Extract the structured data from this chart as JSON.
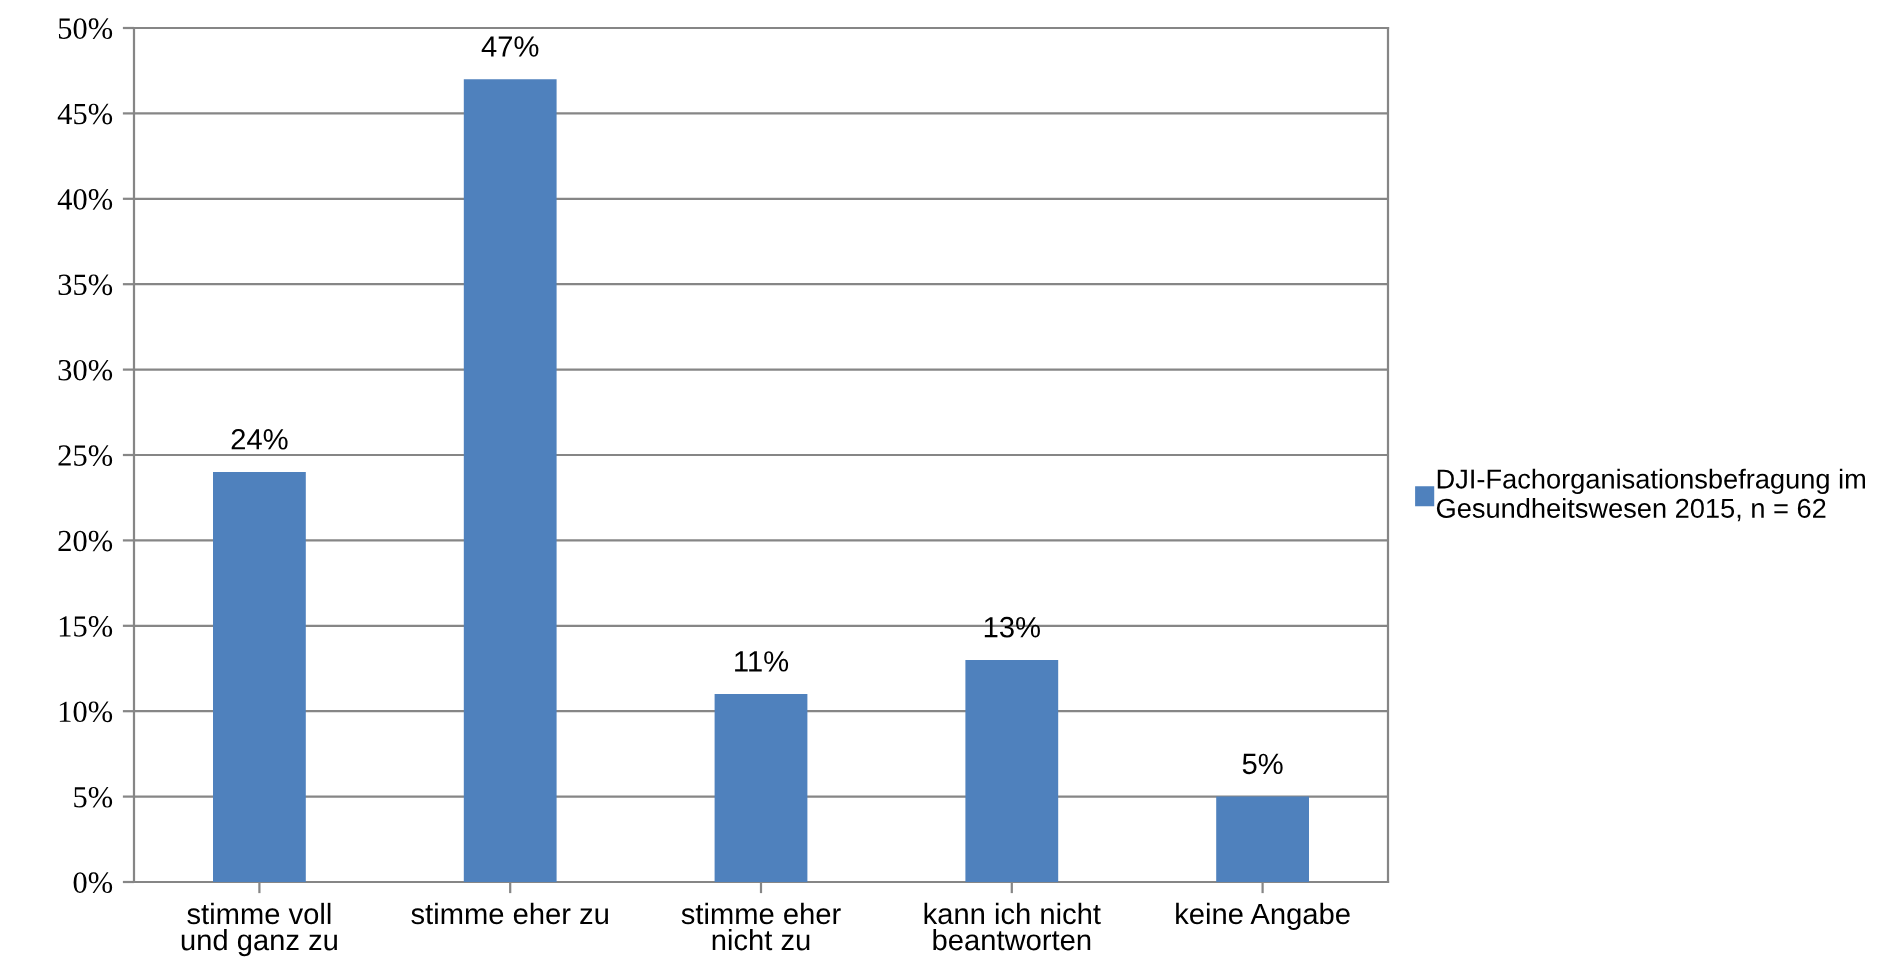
{
  "chart_data": {
    "type": "bar",
    "categories": [
      "stimme voll\nund ganz zu",
      "stimme eher zu",
      "stimme eher\nnicht zu",
      "kann ich nicht\nbeantworten",
      "keine Angabe"
    ],
    "series": [
      {
        "name": "DJI-Fachorganisationsbefragung im\nGesundheitswesen 2015, n = 62",
        "color": "#4f81bd",
        "values": [
          24,
          47,
          11,
          13,
          5
        ],
        "value_labels": [
          "24%",
          "47%",
          "11%",
          "13%",
          "5%"
        ]
      }
    ],
    "ylim": [
      0,
      50
    ],
    "yticks": [
      {
        "value": 0,
        "label": "0%"
      },
      {
        "value": 5,
        "label": "5%"
      },
      {
        "value": 10,
        "label": "10%"
      },
      {
        "value": 15,
        "label": "15%"
      },
      {
        "value": 20,
        "label": "20%"
      },
      {
        "value": 25,
        "label": "25%"
      },
      {
        "value": 30,
        "label": "30%"
      },
      {
        "value": 35,
        "label": "35%"
      },
      {
        "value": 40,
        "label": "40%"
      },
      {
        "value": 45,
        "label": "45%"
      },
      {
        "value": 50,
        "label": "50%"
      }
    ],
    "grid": "y",
    "legend": "right"
  }
}
